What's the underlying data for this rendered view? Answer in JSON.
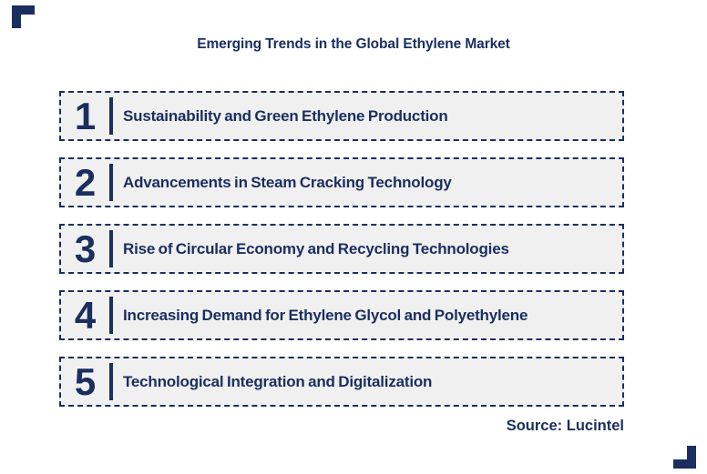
{
  "title": "Emerging Trends in the Global Ethylene Market",
  "source": "Source: Lucintel",
  "colors": {
    "navy": "#1a2e5f",
    "box_fill": "#f0f0f0",
    "background": "#ffffff"
  },
  "trends": [
    {
      "number": "1",
      "label": "Sustainability and Green Ethylene Production"
    },
    {
      "number": "2",
      "label": "Advancements in Steam Cracking Technology"
    },
    {
      "number": "3",
      "label": "Rise of Circular Economy and Recycling Technologies"
    },
    {
      "number": "4",
      "label": "Increasing Demand for Ethylene Glycol and Polyethylene"
    },
    {
      "number": "5",
      "label": "Technological Integration and Digitalization"
    }
  ]
}
